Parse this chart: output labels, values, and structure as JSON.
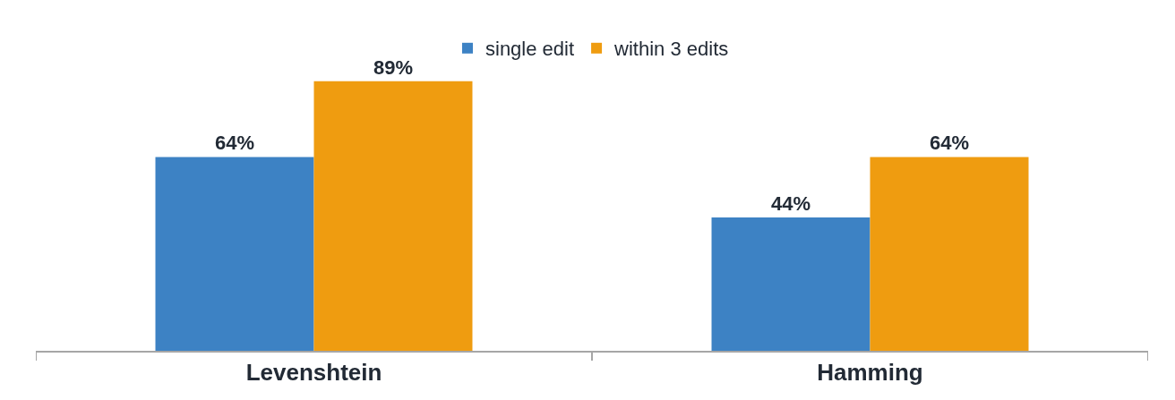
{
  "chart_data": {
    "type": "bar",
    "categories": [
      "Levenshtein",
      "Hamming"
    ],
    "series": [
      {
        "name": "single edit",
        "color": "#3d82c4",
        "values": [
          64,
          44
        ],
        "value_labels": [
          "64%",
          "44%"
        ]
      },
      {
        "name": "within 3 edits",
        "color": "#ef9c10",
        "values": [
          89,
          64
        ],
        "value_labels": [
          "89%",
          "64%"
        ]
      }
    ],
    "legend": "top"
  }
}
